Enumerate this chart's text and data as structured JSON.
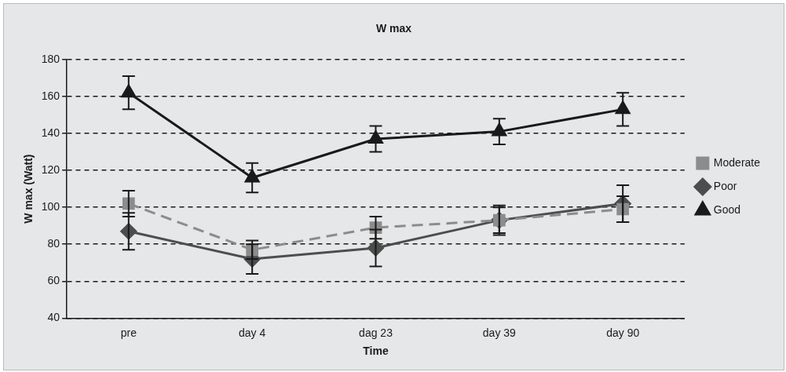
{
  "chart_data": {
    "type": "line",
    "title": "W max",
    "xlabel": "Time",
    "ylabel": "W max (Watt)",
    "categories": [
      "pre",
      "day 4",
      "dag 23",
      "day 39",
      "day 90"
    ],
    "series": [
      {
        "name": "Poor",
        "color": "#4d4d4d",
        "values": [
          87,
          72,
          78,
          93,
          102
        ],
        "errors": [
          10,
          8,
          10,
          8,
          10
        ],
        "marker": "diamond",
        "line_style": "solid"
      },
      {
        "name": "Moderate",
        "color": "#8c8c8c",
        "values": [
          102,
          77,
          89,
          93,
          99
        ],
        "errors": [
          7,
          5,
          6,
          7,
          7
        ],
        "marker": "square",
        "line_style": "dashed"
      },
      {
        "name": "Good",
        "color": "#1a1a1a",
        "values": [
          162,
          116,
          137,
          141,
          153
        ],
        "errors": [
          9,
          8,
          7,
          7,
          9
        ],
        "marker": "triangle",
        "line_style": "solid"
      }
    ],
    "ylim": [
      40,
      180
    ],
    "yticks": [
      40,
      60,
      80,
      100,
      120,
      140,
      160,
      180
    ],
    "grid": "y",
    "legend": "right"
  }
}
